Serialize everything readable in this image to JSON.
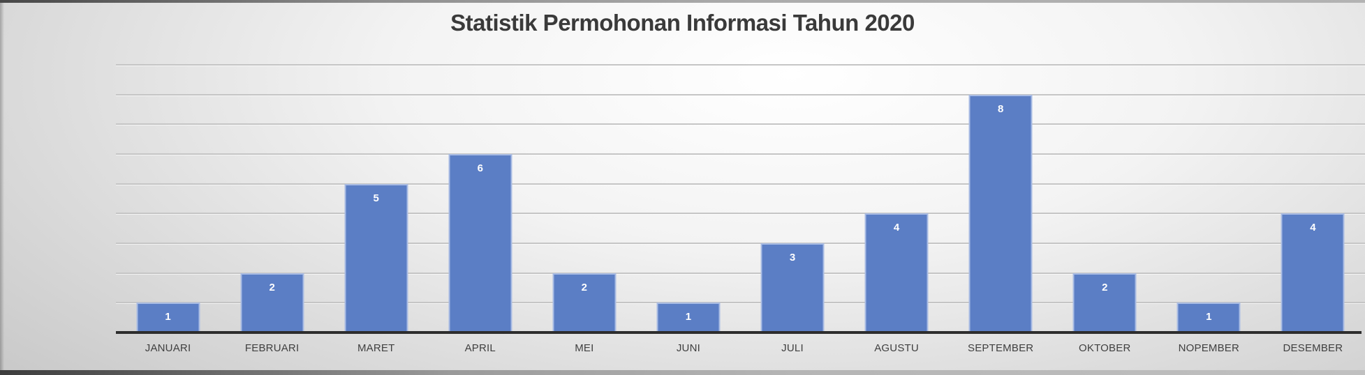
{
  "slide": {
    "title": "Statistik Permohonan Informasi Tahun 2020"
  },
  "chart_data": {
    "type": "bar",
    "title": "Statistik Permohonan Informasi Tahun 2020",
    "categories": [
      "JANUARI",
      "FEBRUARI",
      "MARET",
      "APRIL",
      "MEI",
      "JUNI",
      "JULI",
      "AGUSTU",
      "SEPTEMBER",
      "OKTOBER",
      "NOPEMBER",
      "DESEMBER"
    ],
    "values": [
      1,
      2,
      5,
      6,
      2,
      1,
      3,
      4,
      8,
      2,
      1,
      4
    ],
    "xlabel": "",
    "ylabel": "",
    "ylim": [
      0,
      9
    ],
    "grid_step": 1,
    "grid": true,
    "legend": false,
    "data_labels": "inside-end",
    "colors": {
      "bar_fill": "#5b7ec5",
      "bar_border": "#a9bce4",
      "value_label": "#ffffff",
      "axis_label": "#3f3f3f",
      "gridline": "#c5c5c5",
      "axis_line": "#2d2d2d",
      "title": "#3a3a3a"
    }
  }
}
